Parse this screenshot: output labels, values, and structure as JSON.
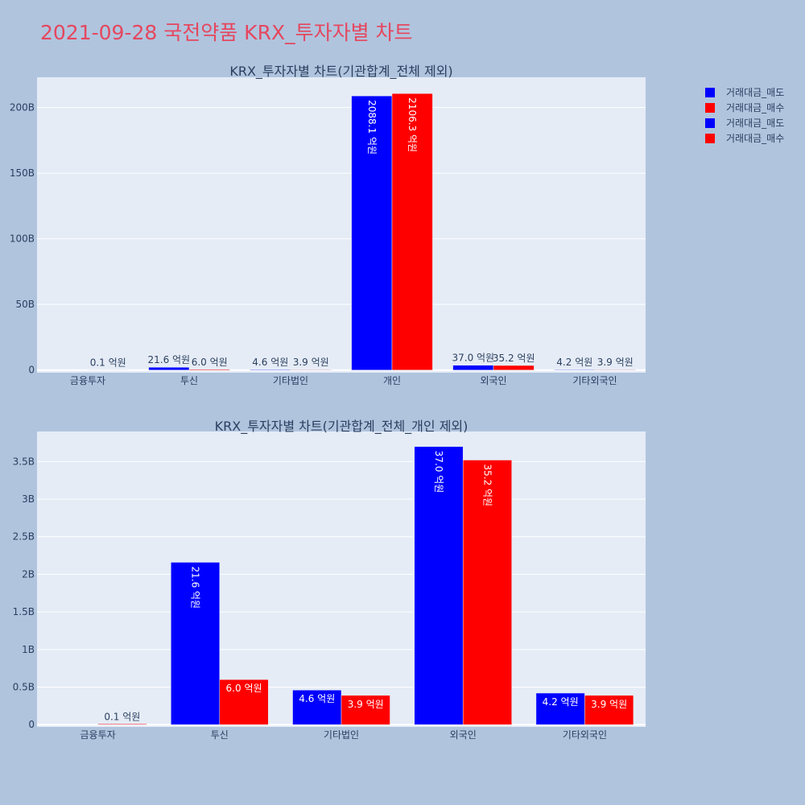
{
  "page_title": "2021-09-28 국전약품 KRX_투자자별 차트",
  "colors": {
    "background": "#b0c4de",
    "plot_bg": "#e5ecf6",
    "title": "#e5475e",
    "sell": "#0000ff",
    "buy": "#ff0000"
  },
  "legend": [
    {
      "label": "거래대금_매도",
      "color": "#0000ff"
    },
    {
      "label": "거래대금_매수",
      "color": "#ff0000"
    },
    {
      "label": "거래대금_매도",
      "color": "#0000ff"
    },
    {
      "label": "거래대금_매수",
      "color": "#ff0000"
    }
  ],
  "chart_data": [
    {
      "type": "bar",
      "title": "KRX_투자자별 차트(기관합계_전체 제외)",
      "categories": [
        "금융투자",
        "투신",
        "기타법인",
        "개인",
        "외국인",
        "기타외국인"
      ],
      "series": [
        {
          "name": "거래대금_매도",
          "color": "#0000ff",
          "values": [
            0,
            2.16,
            0.46,
            208.81,
            3.7,
            0.42
          ],
          "labels": [
            "",
            "21.6 억원",
            "4.6 억원",
            "2088.1 억원",
            "37.0 억원",
            "4.2 억원"
          ]
        },
        {
          "name": "거래대금_매수",
          "color": "#ff0000",
          "values": [
            0.01,
            0.6,
            0.39,
            210.63,
            3.52,
            0.39
          ],
          "labels": [
            "0.1 억원",
            "6.0 억원",
            "3.9 억원",
            "2106.3 억원",
            "35.2 억원",
            "3.9 억원"
          ]
        }
      ],
      "y_ticks": [
        0,
        50,
        100,
        150,
        200
      ],
      "y_tick_labels": [
        "0",
        "50B",
        "100B",
        "150B",
        "200B"
      ],
      "ylim": [
        -2,
        223
      ],
      "grid": true
    },
    {
      "type": "bar",
      "title": "KRX_투자자별 차트(기관합계_전체_개인 제외)",
      "categories": [
        "금융투자",
        "투신",
        "기타법인",
        "외국인",
        "기타외국인"
      ],
      "series": [
        {
          "name": "거래대금_매도",
          "color": "#0000ff",
          "values": [
            0,
            2.16,
            0.46,
            3.7,
            0.42
          ],
          "labels": [
            "",
            "21.6 억원",
            "4.6 억원",
            "37.0 억원",
            "4.2 억원"
          ]
        },
        {
          "name": "거래대금_매수",
          "color": "#ff0000",
          "values": [
            0.01,
            0.6,
            0.39,
            3.52,
            0.39
          ],
          "labels": [
            "0.1 억원",
            "6.0 억원",
            "3.9 억원",
            "35.2 억원",
            "3.9 억원"
          ]
        }
      ],
      "y_ticks": [
        0,
        0.5,
        1,
        1.5,
        2,
        2.5,
        3,
        3.5
      ],
      "y_tick_labels": [
        "0",
        "0.5B",
        "1B",
        "1.5B",
        "2B",
        "2.5B",
        "3B",
        "3.5B"
      ],
      "ylim": [
        -0.03,
        3.9
      ],
      "grid": true
    }
  ]
}
